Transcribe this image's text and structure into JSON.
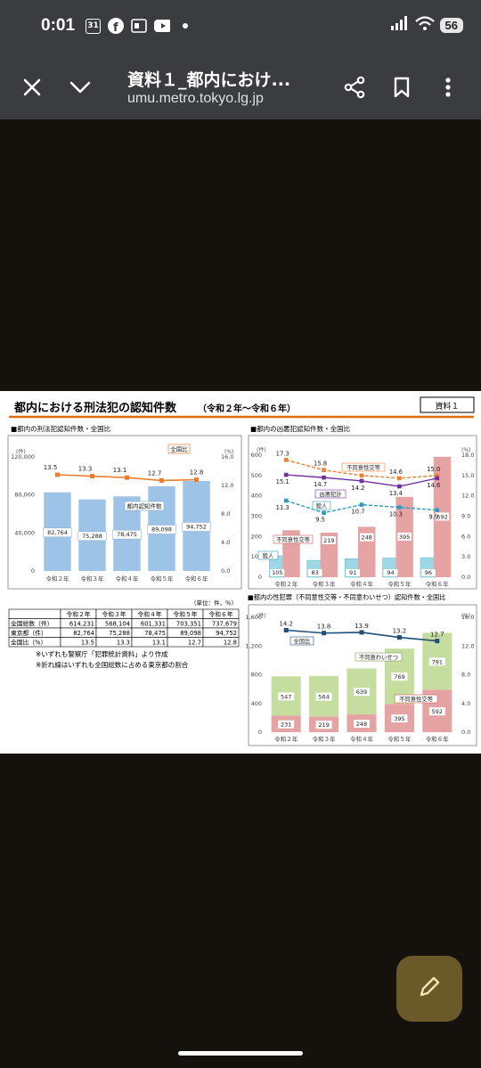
{
  "status": {
    "time": "0:01",
    "calendar_day": "31",
    "battery": "56"
  },
  "toolbar": {
    "title": "資料１_都内におけ...",
    "url": "umu.metro.tokyo.lg.jp"
  },
  "doc": {
    "heading": "都内における刑法犯の認知件数",
    "heading_sub": "（令和２年～令和６年）",
    "badge": "資料１",
    "chart1": {
      "title": "■都内の刑法犯認知件数・全国比",
      "y_left_unit": "(件)",
      "y_right_unit": "(%)",
      "y_left_ticks": [
        "120,000",
        "80,000",
        "40,000",
        "0"
      ],
      "y_right_ticks": [
        "16.0",
        "12.0",
        "8.0",
        "4.0",
        "0.0"
      ],
      "categories": [
        "令和２年",
        "令和３年",
        "令和４年",
        "令和５年",
        "令和６年"
      ],
      "bar_label": "都内認知件数",
      "bar_values": [
        "82,764",
        "75,288",
        "78,475",
        "89,098",
        "94,752"
      ],
      "line_label": "全国比",
      "line_values": [
        "13.5",
        "13.3",
        "13.1",
        "12.7",
        "12.8"
      ]
    },
    "table": {
      "unit_note": "（単位：件，％）",
      "headers": [
        "",
        "令和２年",
        "令和３年",
        "令和４年",
        "令和５年",
        "令和６年"
      ],
      "rows": [
        [
          "全国総数（件）",
          "614,231",
          "568,104",
          "601,331",
          "703,351",
          "737,679"
        ],
        [
          "東京都（件）",
          "82,764",
          "75,288",
          "78,475",
          "89,098",
          "94,752"
        ],
        [
          "全国比（%）",
          "13.5",
          "13.3",
          "13.1",
          "12.7",
          "12.8"
        ]
      ]
    },
    "notes": [
      "※いずれも警察庁「犯罪統計資料」より作成",
      "※折れ線はいずれも全国総数に占める東京都の割合"
    ],
    "chart2": {
      "title": "■都内の凶悪犯認知件数・全国比",
      "y_left_unit": "(件)",
      "y_right_unit": "(%)",
      "y_left_ticks": [
        "600",
        "500",
        "400",
        "300",
        "200",
        "100",
        "0"
      ],
      "y_right_ticks": [
        "18.0",
        "15.0",
        "12.0",
        "9.0",
        "6.0",
        "3.0",
        "0.0"
      ],
      "categories": [
        "令和２年",
        "令和３年",
        "令和４年",
        "令和５年",
        "令和６年"
      ],
      "labels": {
        "kyoaku": "凶悪犯計",
        "satsujin": "殺人",
        "fudoi": "不同意性交等",
        "fudoi_box": "不同意性交等"
      },
      "satsujin_values": [
        "105",
        "83",
        "91",
        "94",
        "96"
      ],
      "fudoi_values": [
        "231",
        "219",
        "248",
        "395",
        "592"
      ],
      "line_fudoi_values": [
        "17.3",
        "15.8",
        "15.0",
        "14.6",
        "15.0"
      ],
      "line_kyoaku_values": [
        "15.1",
        "14.7",
        "14.2",
        "13.4",
        "14.6"
      ],
      "line_satsujin_values": [
        "11.3",
        "9.5",
        "10.7",
        "10.3",
        "9.9"
      ]
    },
    "chart3": {
      "title": "■都内の性犯罪（不同意性交等・不同意わいせつ）認知件数・全国比",
      "y_left_unit": "(件)",
      "y_right_unit": "(%)",
      "y_left_ticks": [
        "1,600",
        "1,200",
        "800",
        "400",
        "0"
      ],
      "y_right_ticks": [
        "16.0",
        "12.0",
        "8.0",
        "4.0",
        "0.0"
      ],
      "categories": [
        "令和２年",
        "令和３年",
        "令和４年",
        "令和５年",
        "令和６年"
      ],
      "labels": {
        "line": "全国比",
        "waisetsu": "不同意わいせつ",
        "seiko": "不同意性交等"
      },
      "seiko_values": [
        "231",
        "219",
        "248",
        "395",
        "592"
      ],
      "waisetsu_values": [
        "547",
        "564",
        "639",
        "769",
        "791"
      ],
      "line_values": [
        "14.2",
        "13.8",
        "13.9",
        "13.2",
        "12.7"
      ]
    }
  },
  "chart_data": [
    {
      "type": "bar",
      "title": "■都内の刑法犯認知件数・全国比",
      "categories": [
        "令和２年",
        "令和３年",
        "令和４年",
        "令和５年",
        "令和６年"
      ],
      "series": [
        {
          "name": "都内認知件数",
          "type": "bar",
          "values": [
            82764,
            75288,
            78475,
            89098,
            94752
          ]
        },
        {
          "name": "全国比",
          "type": "line",
          "axis": "right",
          "values": [
            13.5,
            13.3,
            13.1,
            12.7,
            12.8
          ]
        }
      ],
      "ylim": [
        0,
        120000
      ],
      "y2lim": [
        0,
        16
      ],
      "ylabel": "(件)",
      "y2label": "(%)"
    },
    {
      "type": "bar",
      "title": "■都内の凶悪犯認知件数・全国比",
      "categories": [
        "令和２年",
        "令和３年",
        "令和４年",
        "令和５年",
        "令和６年"
      ],
      "series": [
        {
          "name": "殺人",
          "type": "bar",
          "values": [
            105,
            83,
            91,
            94,
            96
          ]
        },
        {
          "name": "不同意性交等",
          "type": "bar",
          "values": [
            231,
            219,
            248,
            395,
            592
          ]
        },
        {
          "name": "不同意性交等",
          "type": "line",
          "axis": "right",
          "values": [
            17.3,
            15.8,
            15.0,
            14.6,
            15.0
          ]
        },
        {
          "name": "凶悪犯計",
          "type": "line",
          "axis": "right",
          "values": [
            15.1,
            14.7,
            14.2,
            13.4,
            14.6
          ]
        },
        {
          "name": "殺人",
          "type": "line",
          "axis": "right",
          "values": [
            11.3,
            9.5,
            10.7,
            10.3,
            9.9
          ]
        }
      ],
      "ylim": [
        0,
        600
      ],
      "y2lim": [
        0,
        18
      ],
      "ylabel": "(件)",
      "y2label": "(%)"
    },
    {
      "type": "bar",
      "title": "■都内の性犯罪（不同意性交等・不同意わいせつ）認知件数・全国比",
      "categories": [
        "令和２年",
        "令和３年",
        "令和４年",
        "令和５年",
        "令和６年"
      ],
      "series": [
        {
          "name": "不同意性交等",
          "type": "bar",
          "stacked": true,
          "values": [
            231,
            219,
            248,
            395,
            592
          ]
        },
        {
          "name": "不同意わいせつ",
          "type": "bar",
          "stacked": true,
          "values": [
            547,
            564,
            639,
            769,
            791
          ]
        },
        {
          "name": "全国比",
          "type": "line",
          "axis": "right",
          "values": [
            14.2,
            13.8,
            13.9,
            13.2,
            12.7
          ]
        }
      ],
      "ylim": [
        0,
        1600
      ],
      "y2lim": [
        0,
        16
      ],
      "ylabel": "(件)",
      "y2label": "(%)"
    }
  ],
  "colors": {
    "bar_blue": "#9dc3e6",
    "line_orange": "#ed7d31",
    "bar_pink": "#e6a3a3",
    "bar_green": "#c5dea0",
    "line_purple": "#7030a0",
    "line_teal": "#2e9bbf",
    "line_navy": "#1f4e79",
    "accent_orange": "#e46c0a"
  }
}
